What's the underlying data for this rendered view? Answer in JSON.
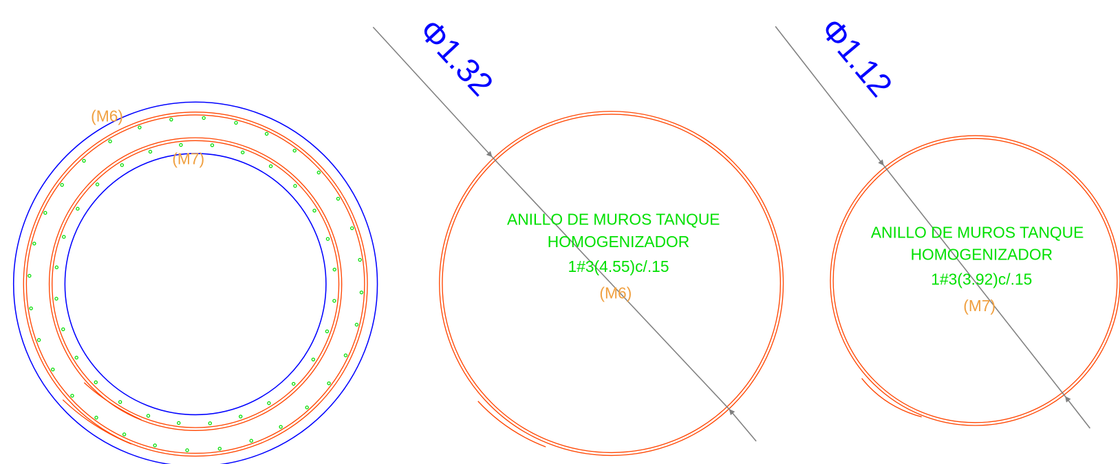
{
  "section": {
    "labels": [
      "(M6)",
      "(M7)"
    ]
  },
  "rings": [
    {
      "dimension": "Φ1.32",
      "title": "ANILLO DE MUROS TANQUE",
      "subtitle": "HOMOGENIZADOR",
      "spec": "1#3(4.55)c/.15",
      "mark": "(M6)"
    },
    {
      "dimension": "Φ1.12",
      "title": "ANILLO DE MUROS TANQUE",
      "subtitle": "HOMOGENIZADOR",
      "spec": "1#3(3.92)c/.15",
      "mark": "(M7)"
    }
  ]
}
